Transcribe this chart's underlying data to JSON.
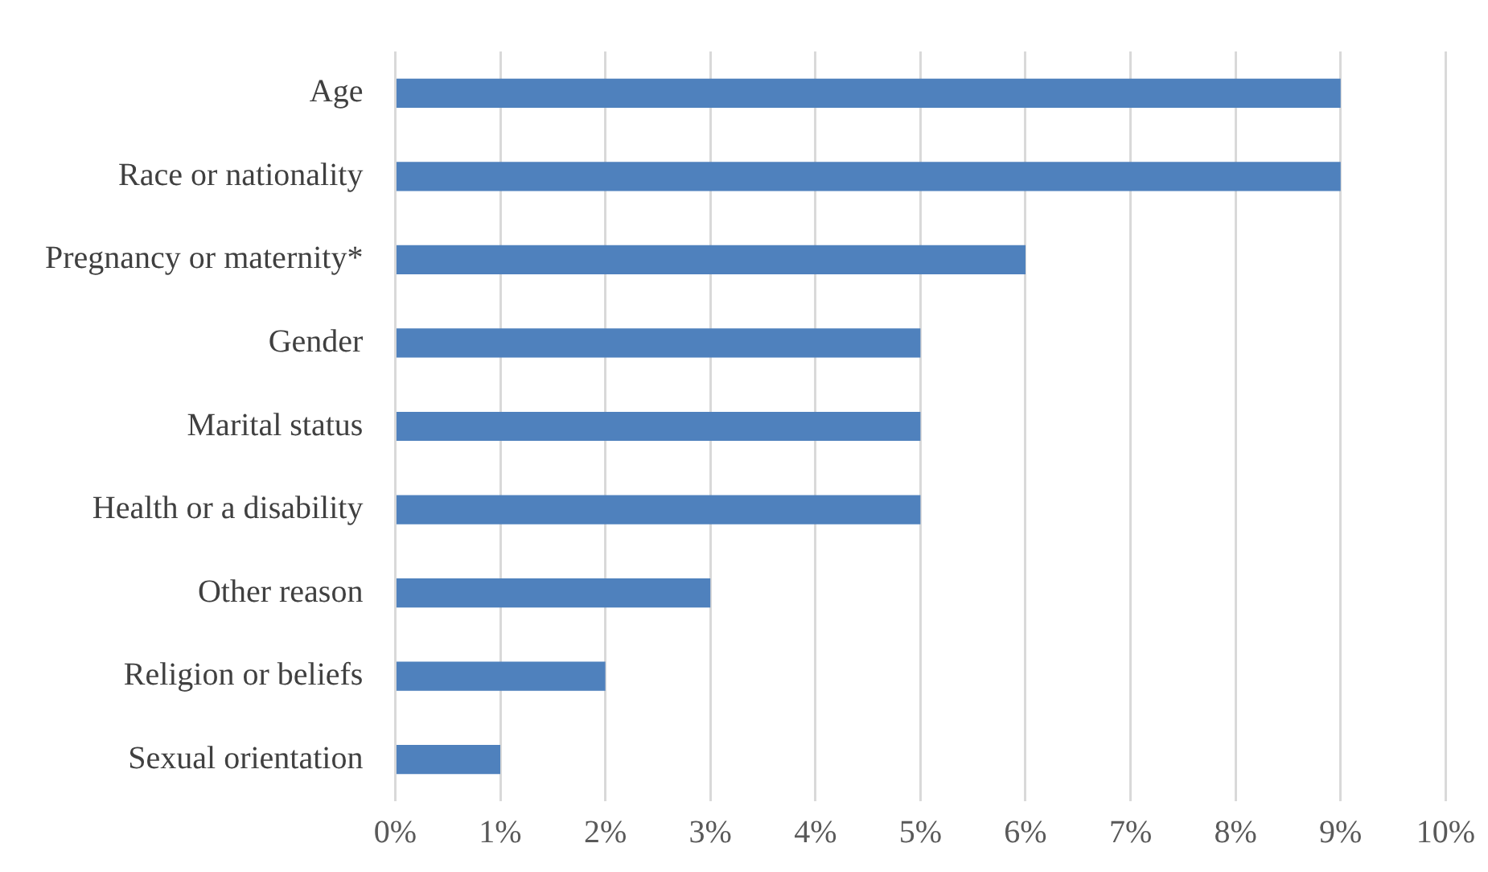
{
  "chart_data": {
    "type": "bar",
    "orientation": "horizontal",
    "categories": [
      "Age",
      "Race or nationality",
      "Pregnancy or maternity*",
      "Gender",
      "Marital status",
      "Health or a disability",
      "Other reason",
      "Religion or beliefs",
      "Sexual orientation"
    ],
    "values": [
      9,
      9,
      6,
      5,
      5,
      5,
      3,
      2,
      1
    ],
    "color": "#4f81bd",
    "xlim": [
      0,
      10
    ],
    "xticks": [
      {
        "value": 0,
        "label": "0%"
      },
      {
        "value": 1,
        "label": "1%"
      },
      {
        "value": 2,
        "label": "2%"
      },
      {
        "value": 3,
        "label": "3%"
      },
      {
        "value": 4,
        "label": "4%"
      },
      {
        "value": 5,
        "label": "5%"
      },
      {
        "value": 6,
        "label": "6%"
      },
      {
        "value": 7,
        "label": "7%"
      },
      {
        "value": 8,
        "label": "8%"
      },
      {
        "value": 9,
        "label": "9%"
      },
      {
        "value": 10,
        "label": "10%"
      }
    ],
    "grid": "x",
    "legend": false
  }
}
